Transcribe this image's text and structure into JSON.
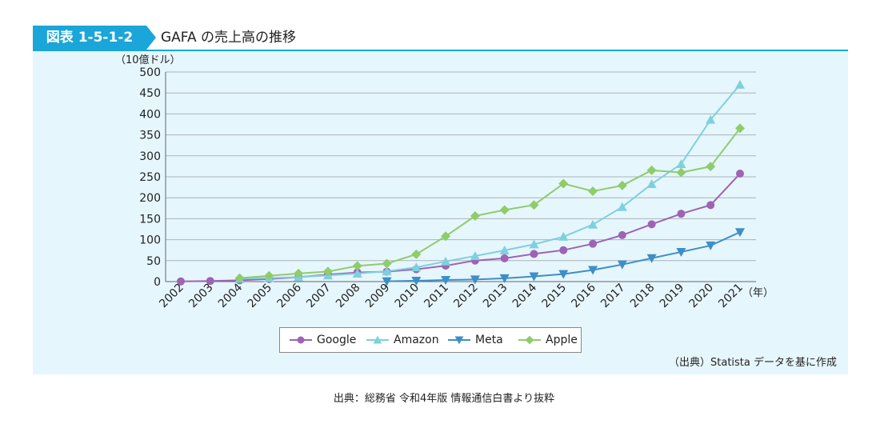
{
  "header": {
    "badge": "図表 1-5-1-2",
    "title": "GAFA の売上高の推移"
  },
  "source_note": "（出典）Statista データを基に作成",
  "footer_note": "出典：総務省 令和4年版 情報通信白書より抜粋",
  "colors": {
    "accent": "#1aa6d9",
    "panel_bg": "#e6f6fd"
  },
  "chart_data": {
    "type": "line",
    "title": "",
    "ylabel": "（10億ドル）",
    "xlabel_unit": "（年）",
    "ylim": [
      0,
      500
    ],
    "yticks": [
      0,
      50,
      100,
      150,
      200,
      250,
      300,
      350,
      400,
      450,
      500
    ],
    "grid": true,
    "legend_position": "bottom",
    "categories": [
      "2002",
      "2003",
      "2004",
      "2005",
      "2006",
      "2007",
      "2008",
      "2009",
      "2010",
      "2011",
      "2012",
      "2013",
      "2014",
      "2015",
      "2016",
      "2017",
      "2018",
      "2019",
      "2020",
      "2021"
    ],
    "series": [
      {
        "name": "Google",
        "color": "#9e63b5",
        "marker": "circle",
        "values": [
          0.4,
          1.5,
          3.2,
          6.1,
          10.6,
          16.6,
          21.8,
          23.7,
          29.3,
          37.9,
          50.2,
          55.5,
          66.0,
          75.0,
          90.3,
          110.9,
          136.8,
          161.9,
          182.5,
          257.6
        ]
      },
      {
        "name": "Amazon",
        "color": "#7fd0de",
        "marker": "triangle-up",
        "values": [
          null,
          null,
          6.9,
          8.5,
          10.7,
          14.8,
          19.2,
          24.5,
          34.2,
          48.1,
          61.1,
          74.5,
          89.0,
          107.0,
          136.0,
          177.9,
          232.9,
          280.5,
          386.1,
          469.8
        ]
      },
      {
        "name": "Meta",
        "color": "#3e8ec7",
        "marker": "triangle-down",
        "values": [
          null,
          null,
          null,
          null,
          null,
          null,
          null,
          0.8,
          2.0,
          3.7,
          5.1,
          7.9,
          12.5,
          17.9,
          27.6,
          40.7,
          55.8,
          70.7,
          86.0,
          117.9
        ]
      },
      {
        "name": "Apple",
        "color": "#8fcc6a",
        "marker": "diamond",
        "values": [
          null,
          null,
          8.3,
          13.9,
          19.3,
          24.0,
          37.5,
          42.9,
          65.2,
          108.2,
          156.5,
          170.9,
          182.8,
          233.7,
          215.6,
          229.2,
          265.6,
          260.2,
          274.5,
          365.8
        ]
      }
    ]
  }
}
